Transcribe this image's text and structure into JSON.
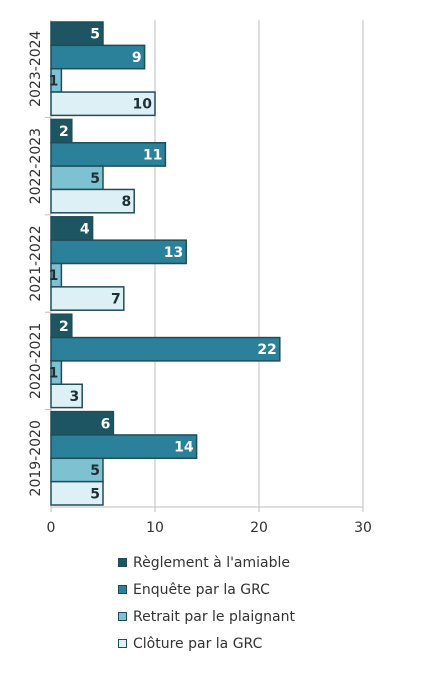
{
  "colors": {
    "grid": "#bfbfbf",
    "axis": "#bfbfbf",
    "text": "#333333",
    "bar_stroke": "#1f4e5a"
  },
  "chart_data": {
    "type": "bar",
    "orientation": "horizontal",
    "categories": [
      "2023-2024",
      "2022-2023",
      "2021-2022",
      "2020-2021",
      "2019-2020"
    ],
    "series": [
      {
        "name": "Règlement à l'amiable",
        "values": [
          5,
          2,
          4,
          2,
          6
        ],
        "color": "#1d5563",
        "label_color": "#ffffff"
      },
      {
        "name": "Enquête par la GRC",
        "values": [
          9,
          11,
          13,
          22,
          14
        ],
        "color": "#2a8199",
        "label_color": "#ffffff"
      },
      {
        "name": "Retrait par le plaignant",
        "values": [
          1,
          5,
          1,
          1,
          5
        ],
        "color": "#7ec1d1",
        "label_color": "#1f2f36"
      },
      {
        "name": "Clôture par la GRC",
        "values": [
          10,
          8,
          7,
          3,
          5
        ],
        "color": "#ddf0f6",
        "label_color": "#1f2f36"
      }
    ],
    "xlim": [
      0,
      30
    ],
    "x_ticks": [
      "0",
      "10",
      "20",
      "30"
    ],
    "xlabel": "",
    "ylabel": "",
    "grid": true,
    "legend_position": "bottom"
  }
}
